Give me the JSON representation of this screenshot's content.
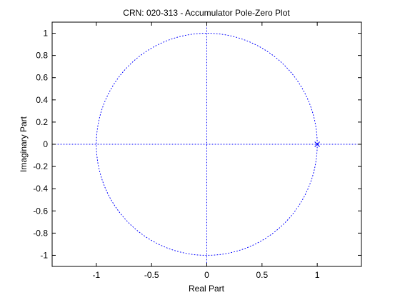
{
  "chart_data": {
    "type": "scatter",
    "title": "CRN: 020-313 - Accumulator Pole-Zero Plot",
    "xlabel": "Real Part",
    "ylabel": "Imaginary Part",
    "xlim": [
      -1.4,
      1.4
    ],
    "ylim": [
      -1.1,
      1.1
    ],
    "xticks": [
      -1,
      -0.5,
      0,
      0.5,
      1
    ],
    "xtick_labels": [
      "-1",
      "-0.5",
      "0",
      "0.5",
      "1"
    ],
    "yticks": [
      1,
      0.8,
      0.6,
      0.4,
      0.2,
      0,
      -0.2,
      -0.4,
      -0.6,
      -0.8,
      -1
    ],
    "ytick_labels": [
      "1",
      "0.8",
      "0.6",
      "0.4",
      "0.2",
      "0",
      "-0.2",
      "-0.4",
      "-0.6",
      "-0.8",
      "-1"
    ],
    "grid": false,
    "unit_circle": {
      "radius": 1,
      "style": "dotted",
      "color": "#0000ff"
    },
    "reference_axes": {
      "style": "dotted",
      "color": "#0000ff"
    },
    "poles": [
      {
        "re": 1,
        "im": 0,
        "marker": "x",
        "color": "#0000ff"
      }
    ],
    "zeros": []
  }
}
